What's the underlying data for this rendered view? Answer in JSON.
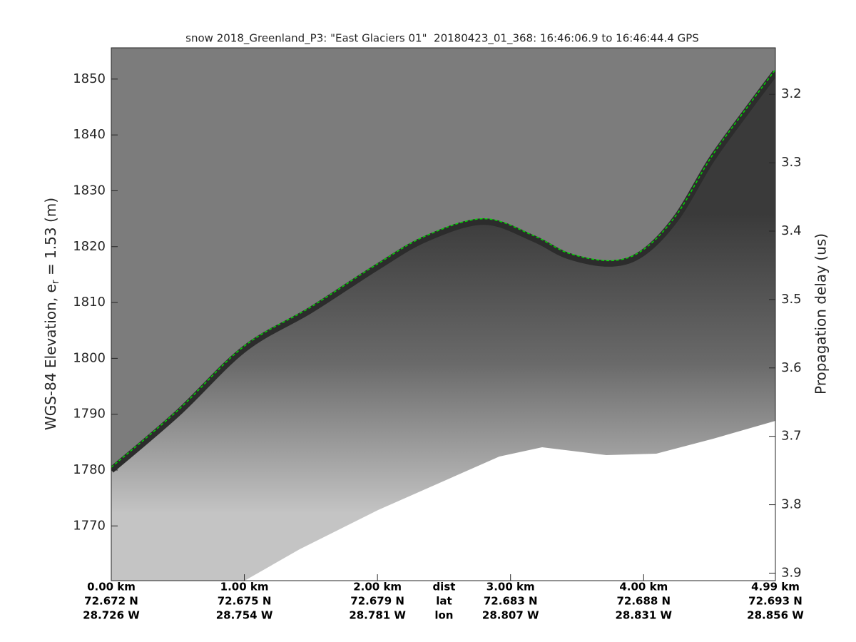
{
  "chart_data": {
    "type": "echogram",
    "title": "snow 2018_Greenland_P3: \"East Glaciers 01\"  20180423_01_368: 16:46:06.9 to 16:46:44.4 GPS",
    "ylabel": [
      "WGS-84 Elevation, e",
      "r",
      " = 1.53 (m)"
    ],
    "y2label": "Propagation delay (us)",
    "xlim": [
      0,
      4.99
    ],
    "ylim": [
      1760.2,
      1855.6
    ],
    "yticks": [
      1770,
      1780,
      1790,
      1800,
      1810,
      1820,
      1830,
      1840,
      1850
    ],
    "y2lim": [
      3.911,
      3.132
    ],
    "y2ticks": [
      3.2,
      3.3,
      3.4,
      3.5,
      3.6,
      3.7,
      3.8,
      3.9
    ],
    "xticks": [
      {
        "value": 0,
        "label": "0.00 km"
      },
      {
        "value": 1,
        "label": "1.00 km"
      },
      {
        "value": 2,
        "label": "2.00 km"
      },
      {
        "value": 3,
        "label": "3.00 km"
      },
      {
        "value": 4,
        "label": "4.00 km"
      },
      {
        "value": 4.99,
        "label": "4.99 km"
      }
    ],
    "lat_labels": [
      "72.672 N",
      "72.675 N",
      "72.679 N",
      "72.683 N",
      "72.688 N",
      "72.693 N"
    ],
    "lon_labels": [
      "28.726 W",
      "28.754 W",
      "28.781 W",
      "28.807 W",
      "28.831 W",
      "28.856 W"
    ],
    "row_labels": [
      "dist",
      "lat",
      "lon"
    ],
    "series": [
      {
        "color": "#00dd00",
        "x": [
          0,
          0.5,
          1.0,
          1.5,
          2.0,
          2.37,
          2.8,
          3.17,
          3.44,
          3.76,
          4.0,
          4.25,
          4.51,
          4.78,
          4.99
        ],
        "values": [
          1780.5,
          1790.7,
          1802.2,
          1809.2,
          1816.9,
          1822.0,
          1825.0,
          1822.0,
          1818.8,
          1817.5,
          1819.5,
          1825.8,
          1836.1,
          1845.0,
          1851.7
        ]
      }
    ]
  }
}
